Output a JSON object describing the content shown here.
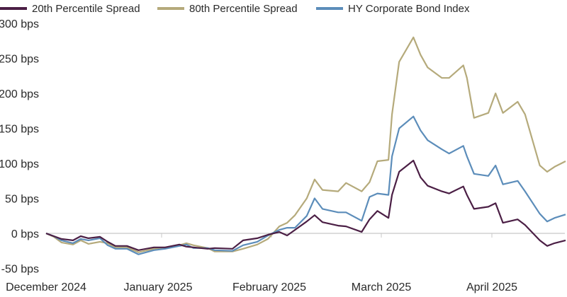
{
  "chart_data": {
    "type": "line",
    "title": "",
    "xlabel": "",
    "ylabel": "",
    "ylim": [
      -50,
      300
    ],
    "y_ticks": [
      "-50 bps",
      "0 bps",
      "50 bps",
      "100 bps",
      "150 bps",
      "200 bps",
      "250 bps",
      "300 bps"
    ],
    "y_tick_values": [
      -50,
      0,
      50,
      100,
      150,
      200,
      250,
      300
    ],
    "x_tick_labels": [
      "December 2024",
      "January 2025",
      "February 2025",
      "March 2025",
      "April 2025"
    ],
    "grid": false,
    "zero_line": true,
    "legend_position": "top-left",
    "x": [
      "2024-12-02",
      "2024-12-04",
      "2024-12-06",
      "2024-12-09",
      "2024-12-11",
      "2024-12-13",
      "2024-12-16",
      "2024-12-18",
      "2024-12-20",
      "2024-12-23",
      "2024-12-26",
      "2024-12-30",
      "2025-01-02",
      "2025-01-06",
      "2025-01-08",
      "2025-01-10",
      "2025-01-14",
      "2025-01-16",
      "2025-01-21",
      "2025-01-24",
      "2025-01-28",
      "2025-01-31",
      "2025-02-03",
      "2025-02-05",
      "2025-02-07",
      "2025-02-10",
      "2025-02-12",
      "2025-02-14",
      "2025-02-18",
      "2025-02-20",
      "2025-02-24",
      "2025-02-26",
      "2025-02-28",
      "2025-03-03",
      "2025-03-04",
      "2025-03-06",
      "2025-03-10",
      "2025-03-12",
      "2025-03-14",
      "2025-03-18",
      "2025-03-20",
      "2025-03-24",
      "2025-03-25",
      "2025-03-27",
      "2025-03-31",
      "2025-04-02",
      "2025-04-04",
      "2025-04-08",
      "2025-04-10",
      "2025-04-14",
      "2025-04-16",
      "2025-04-18",
      "2025-04-21"
    ],
    "series": [
      {
        "name": "20th Percentile Spread",
        "color": "#4b1f45",
        "values": [
          0,
          -4,
          -8,
          -10,
          -4,
          -7,
          -5,
          -12,
          -18,
          -18,
          -24,
          -20,
          -20,
          -16,
          -19,
          -20,
          -22,
          -21,
          -22,
          -10,
          -7,
          -2,
          2,
          -3,
          5,
          17,
          26,
          16,
          11,
          10,
          2,
          20,
          32,
          22,
          55,
          88,
          104,
          80,
          68,
          60,
          57,
          67,
          55,
          35,
          38,
          43,
          15,
          20,
          12,
          -10,
          -18,
          -14,
          -10
        ]
      },
      {
        "name": "80th Percentile Spread",
        "color": "#b5aa7b",
        "values": [
          0,
          -5,
          -13,
          -16,
          -10,
          -15,
          -12,
          -14,
          -20,
          -20,
          -27,
          -22,
          -20,
          -17,
          -14,
          -17,
          -21,
          -26,
          -26,
          -22,
          -16,
          -8,
          10,
          15,
          26,
          50,
          77,
          62,
          60,
          72,
          60,
          73,
          103,
          105,
          170,
          245,
          280,
          255,
          237,
          222,
          222,
          240,
          222,
          165,
          172,
          200,
          172,
          188,
          170,
          97,
          88,
          95,
          103
        ]
      },
      {
        "name": "HY Corporate Bond Index",
        "color": "#5c8dba",
        "values": [
          0,
          -4,
          -10,
          -14,
          -8,
          -10,
          -7,
          -17,
          -22,
          -22,
          -30,
          -24,
          -22,
          -18,
          -16,
          -21,
          -21,
          -24,
          -25,
          -17,
          -12,
          -3,
          5,
          8,
          8,
          25,
          50,
          35,
          30,
          30,
          18,
          52,
          57,
          55,
          110,
          150,
          167,
          147,
          133,
          120,
          114,
          125,
          110,
          85,
          82,
          97,
          70,
          75,
          60,
          28,
          17,
          22,
          27
        ]
      }
    ]
  }
}
